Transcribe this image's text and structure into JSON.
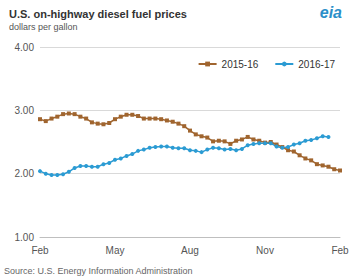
{
  "chart_data": {
    "type": "line",
    "title": "U.S. on-highway diesel fuel prices",
    "subtitle": "dollars per gallon",
    "source": "Source: U.S. Energy Information Administration",
    "logo": "eia",
    "categories": [
      "Feb",
      null,
      null,
      null,
      null,
      null,
      null,
      null,
      null,
      null,
      null,
      null,
      null,
      "May",
      null,
      null,
      null,
      null,
      null,
      null,
      null,
      null,
      null,
      null,
      null,
      null,
      "Aug",
      null,
      null,
      null,
      null,
      null,
      null,
      null,
      null,
      null,
      null,
      null,
      null,
      "Nov",
      null,
      null,
      null,
      null,
      null,
      null,
      null,
      null,
      null,
      null,
      null,
      null,
      "Feb"
    ],
    "series": [
      {
        "name": "2015-16",
        "color": "#a0652f",
        "marker": "square",
        "line_style": "solid",
        "values": [
          2.86,
          2.83,
          2.87,
          2.9,
          2.94,
          2.95,
          2.94,
          2.9,
          2.87,
          2.81,
          2.79,
          2.78,
          2.8,
          2.86,
          2.9,
          2.93,
          2.93,
          2.91,
          2.87,
          2.87,
          2.87,
          2.86,
          2.84,
          2.82,
          2.79,
          2.75,
          2.68,
          2.62,
          2.59,
          2.57,
          2.51,
          2.52,
          2.51,
          2.47,
          2.52,
          2.54,
          2.58,
          2.54,
          2.52,
          2.49,
          2.5,
          2.46,
          2.42,
          2.37,
          2.35,
          2.29,
          2.24,
          2.21,
          2.15,
          2.13,
          2.11,
          2.07,
          2.05
        ]
      },
      {
        "name": "2016-17",
        "color": "#2b9bd3",
        "marker": "circle",
        "line_style": "solid",
        "values": [
          2.04,
          2.0,
          1.98,
          1.98,
          1.99,
          2.03,
          2.09,
          2.12,
          2.12,
          2.11,
          2.11,
          2.15,
          2.17,
          2.22,
          2.24,
          2.28,
          2.31,
          2.36,
          2.38,
          2.41,
          2.42,
          2.43,
          2.43,
          2.41,
          2.4,
          2.4,
          2.37,
          2.36,
          2.34,
          2.38,
          2.41,
          2.4,
          2.38,
          2.39,
          2.37,
          2.39,
          2.45,
          2.47,
          2.48,
          2.48,
          2.48,
          2.43,
          2.41,
          2.42,
          2.46,
          2.48,
          2.52,
          2.53,
          2.56,
          2.59,
          2.58,
          null,
          null
        ]
      }
    ],
    "ylim": [
      1,
      4
    ],
    "yticks": [
      {
        "value": 1,
        "label": "1.00"
      },
      {
        "value": 2,
        "label": "2.00"
      },
      {
        "value": 3,
        "label": "3.00"
      },
      {
        "value": 4,
        "label": "4.00"
      }
    ],
    "grid": true,
    "legend": "top-right"
  }
}
